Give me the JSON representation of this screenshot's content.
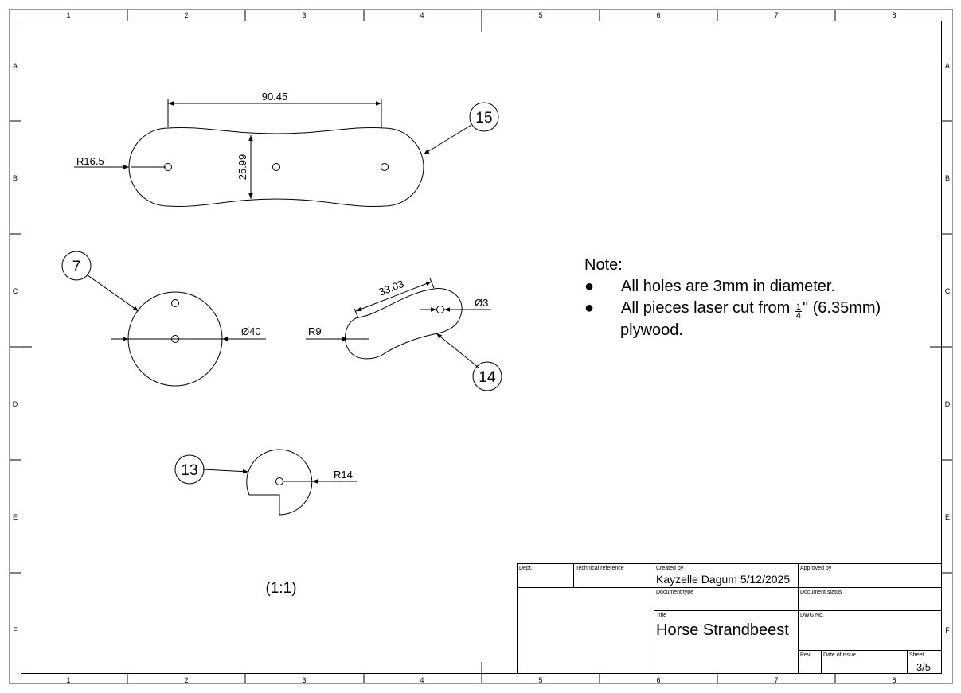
{
  "frame": {
    "column_labels": [
      "1",
      "2",
      "3",
      "4",
      "5",
      "6",
      "7",
      "8"
    ],
    "row_labels": [
      "A",
      "B",
      "C",
      "D",
      "E",
      "F"
    ]
  },
  "parts": {
    "part15": {
      "balloon": "15",
      "dim_length": "90.45",
      "dim_width": "25.99",
      "dim_radius": "R16.5"
    },
    "part7": {
      "balloon": "7",
      "dim_diameter": "Ø40"
    },
    "part14": {
      "balloon": "14",
      "dim_length": "33.03",
      "dim_radius": "R9",
      "dim_hole": "Ø3"
    },
    "part13": {
      "balloon": "13",
      "dim_radius": "R14"
    }
  },
  "scale_label": "(1:1)",
  "note": {
    "heading": "Note:",
    "bullet_symbol": "●",
    "bullet1": "All holes are 3mm in diameter.",
    "bullet2_before": "All pieces laser cut from",
    "fraction_num": "1",
    "fraction_den": "4",
    "bullet2_after": "\" (6.35mm)",
    "bullet2_cont": "plywood."
  },
  "title_block": {
    "dept_label": "Dept.",
    "tech_ref_label": "Technical reference",
    "created_by_label": "Created by",
    "created_by_value": "Kayzelle Dagum 5/12/2025",
    "approved_by_label": "Approved by",
    "doc_type_label": "Document type",
    "doc_status_label": "Document status",
    "title_label": "Title",
    "title_value": "Horse Strandbeest",
    "dwg_no_label": "DWG No.",
    "rev_label": "Rev.",
    "date_issue_label": "Date of issue",
    "sheet_label": "Sheet",
    "sheet_value": "3/5"
  }
}
